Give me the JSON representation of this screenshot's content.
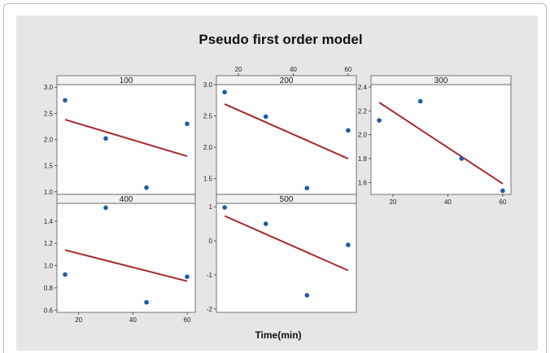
{
  "chart_data": {
    "type": "scatter",
    "title": "Pseudo first order model",
    "xlabel": "Time(min)",
    "ylabel": "",
    "x_ticks": [
      20,
      40,
      60
    ],
    "colors": {
      "point": "#1f5aa6",
      "fit_line": "#a52a2a",
      "background": "#e6e6e6",
      "strip": "#f2f2f2"
    },
    "panels": [
      {
        "name": "100",
        "x": [
          15,
          30,
          45,
          60
        ],
        "y": [
          2.75,
          2.02,
          1.08,
          2.3
        ],
        "fit": {
          "x": [
            15,
            60
          ],
          "y": [
            2.38,
            1.68
          ]
        },
        "ylim": [
          0.95,
          3.05
        ],
        "y_ticks": [
          1.0,
          1.5,
          2.0,
          2.5,
          3.0
        ],
        "y_tick_labels": [
          "1.0",
          "1.5",
          "2.0",
          "2.5",
          "3.0"
        ],
        "show_x_top": false,
        "show_x_bottom": false
      },
      {
        "name": "200",
        "x": [
          15,
          30,
          45,
          60
        ],
        "y": [
          2.88,
          2.49,
          1.35,
          2.27
        ],
        "fit": {
          "x": [
            15,
            60
          ],
          "y": [
            2.69,
            1.82
          ]
        },
        "ylim": [
          1.25,
          3.0
        ],
        "y_ticks": [
          1.5,
          2.0,
          2.5,
          3.0
        ],
        "y_tick_labels": [
          "1.5",
          "2.0",
          "2.5",
          "3.0"
        ],
        "show_x_top": true,
        "show_x_bottom": false
      },
      {
        "name": "300",
        "x": [
          15,
          30,
          45,
          60
        ],
        "y": [
          2.12,
          2.28,
          1.8,
          1.53
        ],
        "fit": {
          "x": [
            15,
            60
          ],
          "y": [
            2.27,
            1.59
          ]
        },
        "ylim": [
          1.5,
          2.42
        ],
        "y_ticks": [
          1.6,
          1.8,
          2.0,
          2.2,
          2.4
        ],
        "y_tick_labels": [
          "1.6",
          "1.8",
          "2.0",
          "2.2",
          "2.4"
        ],
        "show_x_top": false,
        "show_x_bottom": true
      },
      {
        "name": "400",
        "x": [
          15,
          30,
          45,
          60
        ],
        "y": [
          0.92,
          1.52,
          0.67,
          0.9
        ],
        "fit": {
          "x": [
            15,
            60
          ],
          "y": [
            1.14,
            0.86
          ]
        },
        "ylim": [
          0.58,
          1.56
        ],
        "y_ticks": [
          0.6,
          0.8,
          1.0,
          1.2,
          1.4
        ],
        "y_tick_labels": [
          "0.6",
          "0.8",
          "1.0",
          "1.2",
          "1.4"
        ],
        "show_x_top": false,
        "show_x_bottom": true
      },
      {
        "name": "500",
        "x": [
          15,
          30,
          45,
          60
        ],
        "y": [
          0.98,
          0.5,
          -1.6,
          -0.12
        ],
        "fit": {
          "x": [
            15,
            60
          ],
          "y": [
            0.73,
            -0.87
          ]
        },
        "ylim": [
          -2.1,
          1.1
        ],
        "y_ticks": [
          -2,
          -1,
          0,
          1
        ],
        "y_tick_labels": [
          "-2",
          "-1",
          "0",
          "1"
        ],
        "show_x_top": false,
        "show_x_bottom": false
      }
    ]
  }
}
